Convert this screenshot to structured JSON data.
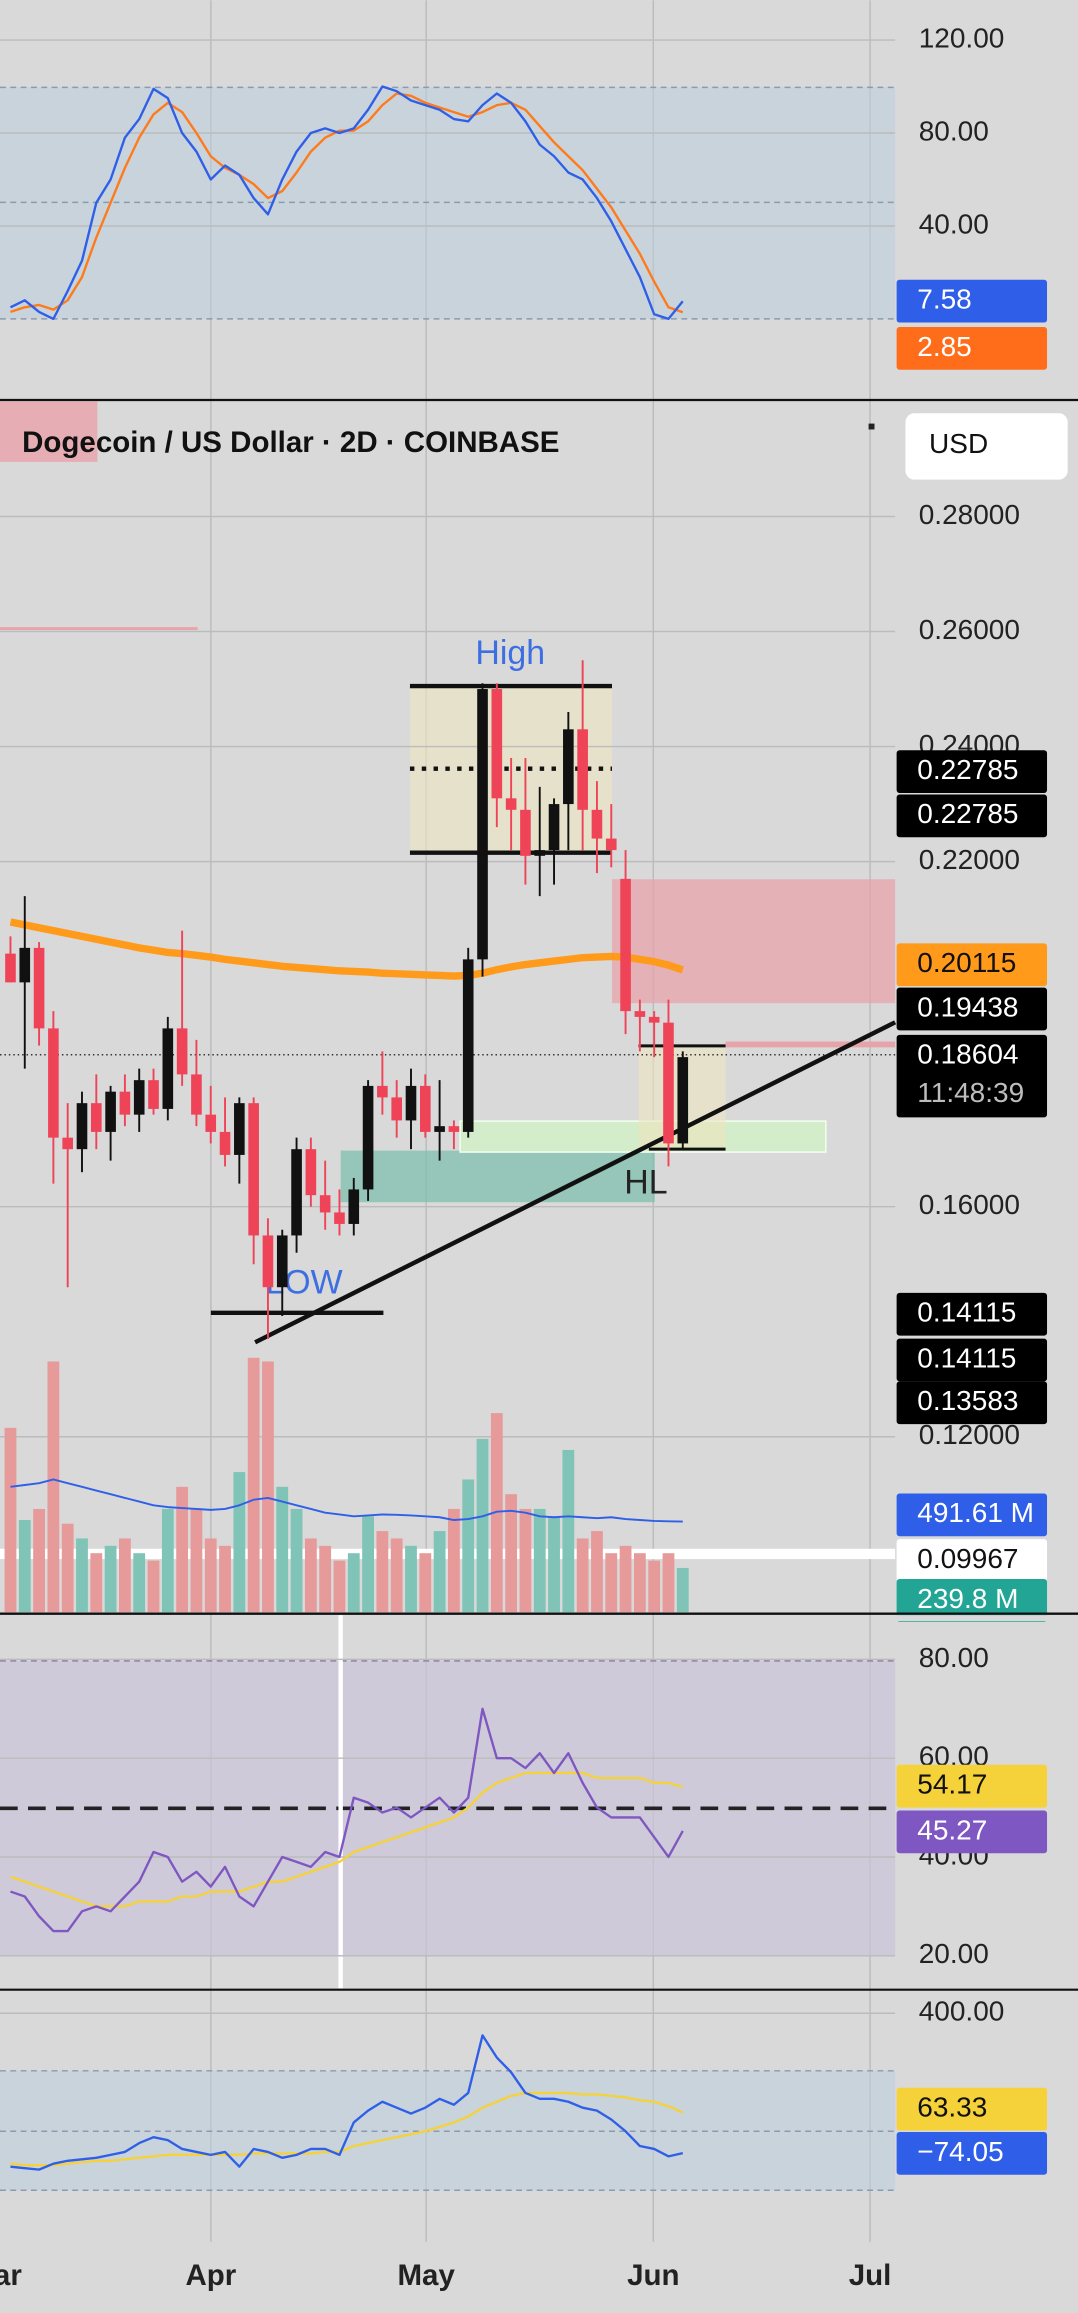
{
  "stoch": {
    "ylim": [
      -34.9,
      137.1
    ],
    "yticks": [
      {
        "value": 120,
        "label": "120.00"
      },
      {
        "value": 80,
        "label": "80.00"
      },
      {
        "value": 40,
        "label": "40.00"
      }
    ],
    "k": [
      5,
      8,
      3,
      0,
      12,
      25,
      50,
      60,
      78,
      86,
      99,
      95,
      80,
      72,
      60,
      66,
      62,
      52,
      45,
      60,
      72,
      80,
      82,
      80,
      82,
      90,
      100,
      98,
      94,
      92,
      90,
      86,
      85,
      92,
      97,
      93,
      85,
      75,
      70,
      63,
      60,
      52,
      42,
      30,
      18,
      2,
      0,
      7.58
    ],
    "d": [
      3,
      5,
      6,
      4,
      8,
      18,
      35,
      50,
      65,
      78,
      88,
      93,
      89,
      80,
      70,
      65,
      62,
      58,
      52,
      55,
      63,
      72,
      78,
      81,
      81,
      85,
      92,
      97,
      96,
      93,
      91,
      89,
      87,
      89,
      92,
      93,
      90,
      83,
      76,
      70,
      64,
      56,
      48,
      38,
      28,
      16,
      5,
      2.85
    ],
    "k_badge": 7.58,
    "d_badge": 2.85
  },
  "price": {
    "title": "Dogecoin / US Dollar · 2D · COINBASE",
    "currency": "USD",
    "ylim": [
      0.0895,
      0.3
    ],
    "yticks": [
      {
        "value": 0.28,
        "label": "0.28000"
      },
      {
        "value": 0.26,
        "label": "0.26000"
      },
      {
        "value": 0.24,
        "label": "0.24000"
      },
      {
        "value": 0.22,
        "label": "0.22000"
      },
      {
        "value": 0.16,
        "label": "0.16000"
      },
      {
        "value": 0.12,
        "label": "0.12000"
      }
    ],
    "ohlc": [
      [
        0.204,
        0.207,
        0.199,
        0.199
      ],
      [
        0.199,
        0.214,
        0.184,
        0.205
      ],
      [
        0.205,
        0.206,
        0.188,
        0.191
      ],
      [
        0.191,
        0.194,
        0.164,
        0.172
      ],
      [
        0.172,
        0.178,
        0.146,
        0.17
      ],
      [
        0.17,
        0.18,
        0.166,
        0.178
      ],
      [
        0.178,
        0.183,
        0.17,
        0.173
      ],
      [
        0.173,
        0.181,
        0.168,
        0.18
      ],
      [
        0.18,
        0.183,
        0.174,
        0.176
      ],
      [
        0.176,
        0.184,
        0.173,
        0.182
      ],
      [
        0.182,
        0.184,
        0.176,
        0.177
      ],
      [
        0.177,
        0.193,
        0.175,
        0.191
      ],
      [
        0.191,
        0.208,
        0.181,
        0.183
      ],
      [
        0.183,
        0.189,
        0.174,
        0.176
      ],
      [
        0.176,
        0.181,
        0.171,
        0.173
      ],
      [
        0.173,
        0.179,
        0.167,
        0.169
      ],
      [
        0.169,
        0.179,
        0.164,
        0.178
      ],
      [
        0.178,
        0.179,
        0.15,
        0.155
      ],
      [
        0.155,
        0.158,
        0.137,
        0.146
      ],
      [
        0.146,
        0.156,
        0.141,
        0.155
      ],
      [
        0.155,
        0.172,
        0.152,
        0.17
      ],
      [
        0.17,
        0.172,
        0.16,
        0.162
      ],
      [
        0.162,
        0.168,
        0.156,
        0.159
      ],
      [
        0.159,
        0.163,
        0.155,
        0.157
      ],
      [
        0.157,
        0.165,
        0.155,
        0.163
      ],
      [
        0.163,
        0.182,
        0.161,
        0.181
      ],
      [
        0.181,
        0.187,
        0.176,
        0.179
      ],
      [
        0.179,
        0.182,
        0.172,
        0.175
      ],
      [
        0.175,
        0.184,
        0.17,
        0.181
      ],
      [
        0.181,
        0.183,
        0.172,
        0.173
      ],
      [
        0.173,
        0.182,
        0.168,
        0.174
      ],
      [
        0.174,
        0.175,
        0.17,
        0.173
      ],
      [
        0.173,
        0.205,
        0.172,
        0.203
      ],
      [
        0.203,
        0.251,
        0.2,
        0.25
      ],
      [
        0.25,
        0.251,
        0.226,
        0.231
      ],
      [
        0.231,
        0.238,
        0.222,
        0.229
      ],
      [
        0.229,
        0.238,
        0.216,
        0.221
      ],
      [
        0.221,
        0.233,
        0.214,
        0.222
      ],
      [
        0.222,
        0.231,
        0.216,
        0.23
      ],
      [
        0.23,
        0.246,
        0.222,
        0.243
      ],
      [
        0.243,
        0.255,
        0.222,
        0.229
      ],
      [
        0.229,
        0.234,
        0.218,
        0.224
      ],
      [
        0.224,
        0.23,
        0.219,
        0.222
      ],
      [
        0.217,
        0.222,
        0.19,
        0.194
      ],
      [
        0.194,
        0.196,
        0.187,
        0.193
      ],
      [
        0.193,
        0.194,
        0.186,
        0.192
      ],
      [
        0.192,
        0.196,
        0.167,
        0.171
      ],
      [
        0.171,
        0.187,
        0.17,
        0.186
      ]
    ],
    "ema": [
      0.2095,
      0.209,
      0.2085,
      0.208,
      0.2075,
      0.207,
      0.2065,
      0.206,
      0.2055,
      0.205,
      0.2046,
      0.2042,
      0.204,
      0.2037,
      0.2034,
      0.203,
      0.2027,
      0.2024,
      0.2021,
      0.2018,
      0.2016,
      0.2014,
      0.2012,
      0.201,
      0.2009,
      0.2008,
      0.2006,
      0.2005,
      0.2004,
      0.2003,
      0.2002,
      0.2001,
      0.2002,
      0.2006,
      0.2012,
      0.2017,
      0.2021,
      0.2024,
      0.2027,
      0.203,
      0.2033,
      0.2034,
      0.2035,
      0.2034,
      0.203,
      0.2026,
      0.202,
      0.20115
    ],
    "volume_ylim": [
      0,
      6568
    ],
    "volume": [
      1000,
      500,
      560,
      1360,
      480,
      400,
      320,
      360,
      400,
      320,
      280,
      560,
      680,
      560,
      400,
      360,
      760,
      1380,
      1360,
      680,
      560,
      400,
      360,
      280,
      320,
      520,
      440,
      400,
      360,
      320,
      440,
      560,
      720,
      940,
      1080,
      640,
      560,
      560,
      520,
      880,
      400,
      440,
      320,
      360,
      320,
      280,
      320,
      239.8
    ],
    "volume_ma": [
      680,
      690,
      700,
      720,
      700,
      680,
      660,
      640,
      620,
      600,
      580,
      570,
      565,
      560,
      555,
      560,
      580,
      610,
      620,
      600,
      580,
      560,
      540,
      530,
      520,
      525,
      530,
      528,
      525,
      520,
      515,
      500,
      505,
      520,
      545,
      550,
      540,
      520,
      515,
      520,
      515,
      510,
      515,
      505,
      500,
      495,
      493,
      491.61
    ],
    "labels": {
      "high": "High",
      "low": "LOW",
      "hl": "HL"
    },
    "badges": {
      "range_high": 0.22785,
      "range_low": 0.22785,
      "ema": 0.20115,
      "level": 0.19438,
      "last": 0.18604,
      "countdown": "11:48:39",
      "support_1": 0.14115,
      "support_2": 0.14115,
      "support_3": 0.13583,
      "volume_ma": {
        "value": 491.61,
        "label": "491.61 M"
      },
      "level_2": 0.09967,
      "volume": {
        "value": 239.8,
        "label": "239.8 M"
      }
    }
  },
  "rsi": {
    "ylim": [
      13.43,
      88.96
    ],
    "yticks": [
      {
        "value": 80,
        "label": "80.00"
      },
      {
        "value": 60,
        "label": "60.00"
      },
      {
        "value": 40,
        "label": "40.00"
      },
      {
        "value": 20,
        "label": "20.00"
      }
    ],
    "rsi": [
      33,
      32,
      28,
      25,
      25,
      29,
      30,
      29,
      32,
      35,
      41,
      40,
      35,
      37,
      34,
      38,
      32,
      30,
      35,
      40,
      39,
      38,
      41,
      40,
      52,
      51,
      49,
      50,
      48,
      50,
      52,
      49,
      52,
      70,
      60,
      60,
      58,
      61,
      57,
      61,
      55,
      50,
      48,
      48,
      48,
      44,
      40,
      45.27
    ],
    "ma": [
      36,
      35,
      34,
      33,
      32,
      31,
      30,
      30,
      30,
      31,
      31,
      31,
      32,
      32,
      33,
      33,
      33,
      34,
      35,
      35,
      36,
      37,
      38,
      39,
      41,
      42,
      43,
      44,
      45,
      46,
      47,
      48,
      50,
      53,
      55,
      56,
      57,
      57,
      57,
      57,
      57,
      56,
      56,
      56,
      56,
      55,
      55,
      54.17
    ],
    "ma_badge": 54.17,
    "rsi_badge": 45.27
  },
  "cci": {
    "ylim": [
      -375,
      475
    ],
    "yticks": [
      {
        "value": 400,
        "label": "400.00"
      }
    ],
    "cci": [
      -120,
      -125,
      -130,
      -110,
      -100,
      -95,
      -90,
      -80,
      -70,
      -40,
      -20,
      -30,
      -60,
      -70,
      -80,
      -70,
      -120,
      -60,
      -70,
      -90,
      -80,
      -60,
      -60,
      -80,
      30,
      70,
      100,
      80,
      60,
      80,
      110,
      90,
      130,
      325,
      250,
      200,
      130,
      110,
      110,
      100,
      80,
      70,
      40,
      0,
      -50,
      -60,
      -85,
      -74.05
    ],
    "ma": [
      -110,
      -115,
      -115,
      -115,
      -110,
      -105,
      -100,
      -100,
      -95,
      -90,
      -85,
      -80,
      -80,
      -80,
      -80,
      -80,
      -80,
      -75,
      -75,
      -75,
      -75,
      -75,
      -70,
      -70,
      -50,
      -40,
      -30,
      -20,
      -10,
      0,
      15,
      30,
      50,
      80,
      100,
      120,
      130,
      130,
      130,
      130,
      125,
      125,
      120,
      115,
      105,
      100,
      85,
      63.33
    ],
    "ma_badge": 63.33,
    "cci_badge": {
      "value": -74.05,
      "label": "−74.05"
    }
  },
  "time_axis": {
    "labels": [
      "Mar",
      "Apr",
      "May",
      "Jun",
      "Jul"
    ]
  }
}
